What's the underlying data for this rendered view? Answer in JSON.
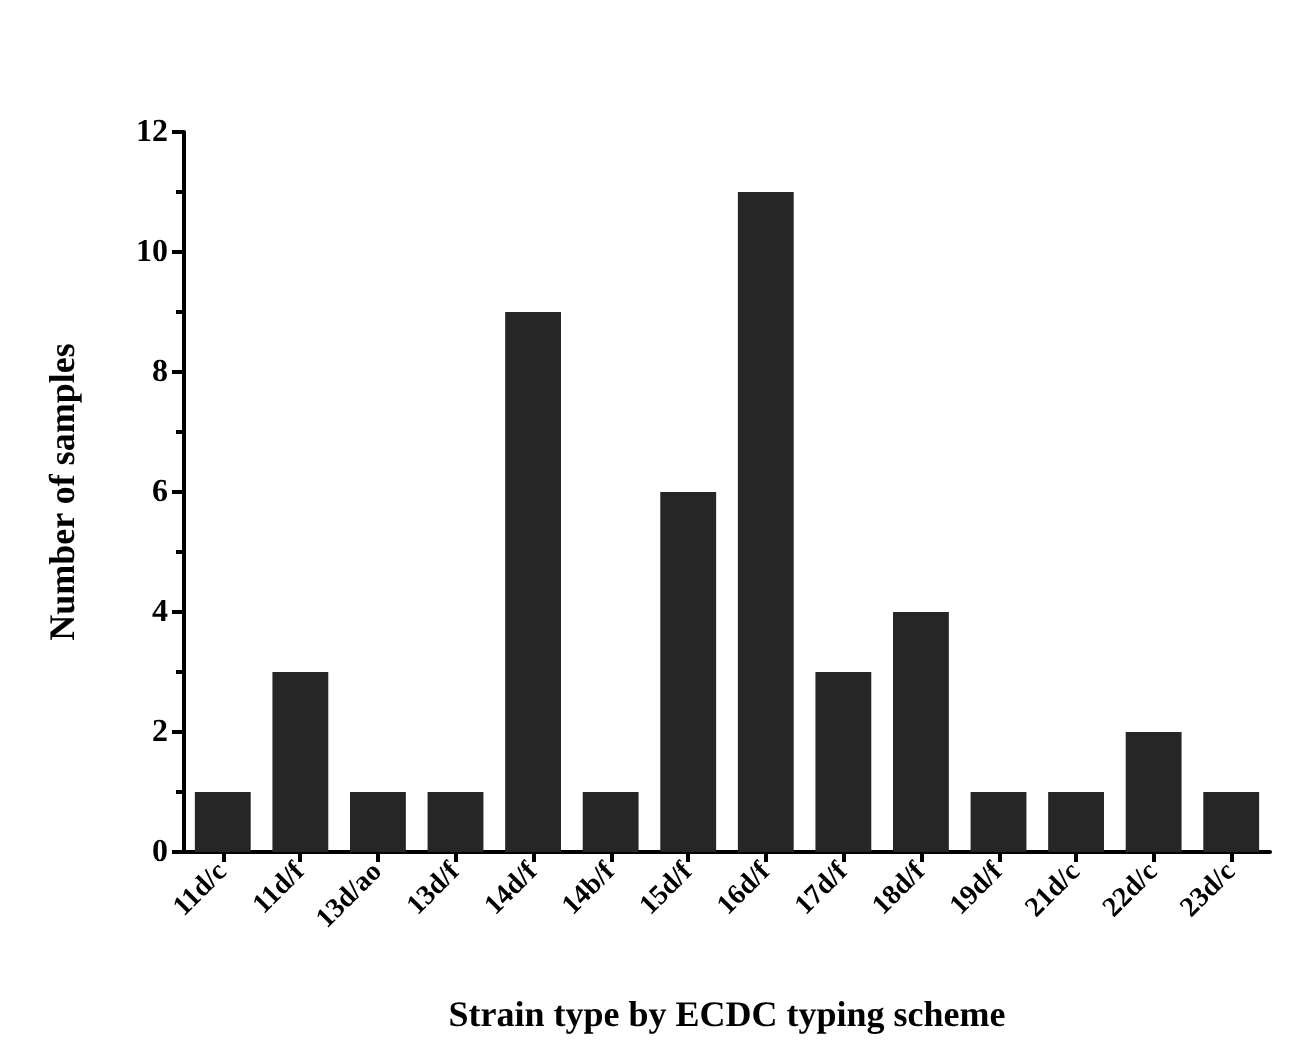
{
  "chart_data": {
    "type": "bar",
    "xlabel": "Strain type by ECDC typing scheme",
    "ylabel": "Number of samples",
    "categories": [
      "11d/c",
      "11d/f",
      "13d/ao",
      "13d/f",
      "14d/f",
      "14b/f",
      "15d/f",
      "16d/f",
      "17d/f",
      "18d/f",
      "19d/f",
      "21d/c",
      "22d/c",
      "23d/c"
    ],
    "values": [
      1,
      3,
      1,
      1,
      9,
      1,
      6,
      11,
      3,
      4,
      1,
      1,
      2,
      1
    ],
    "color": "#262626",
    "ylim": [
      0,
      12
    ],
    "yticks": [
      0,
      2,
      4,
      6,
      8,
      10,
      12
    ],
    "grid": false
  }
}
